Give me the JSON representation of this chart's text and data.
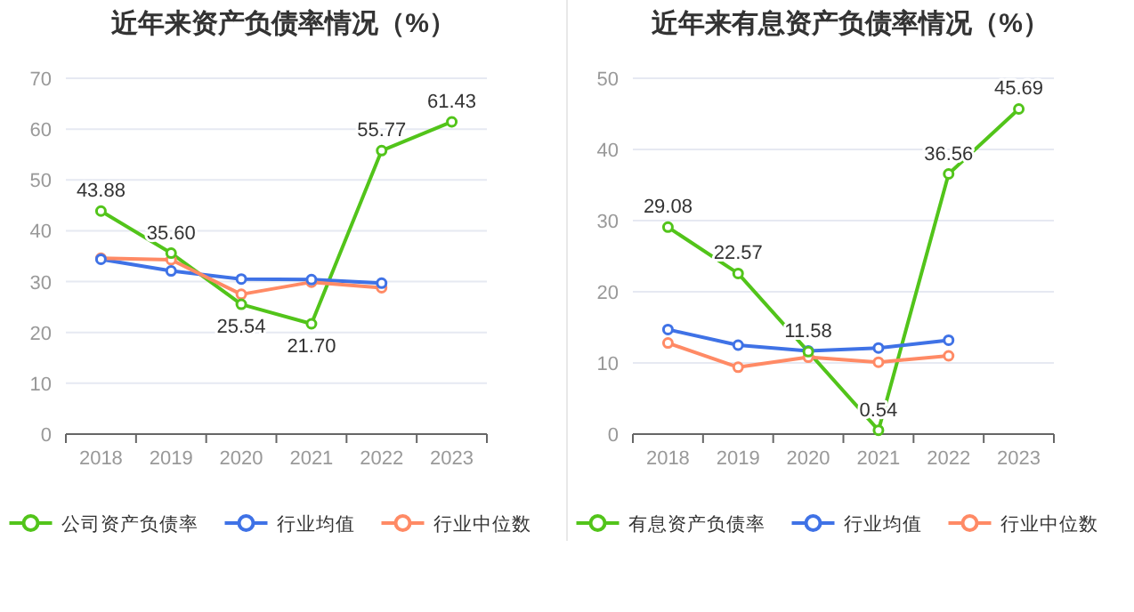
{
  "chart_data": [
    {
      "type": "line",
      "title": "近年来资产负债率情况（%）",
      "categories": [
        "2018",
        "2019",
        "2020",
        "2021",
        "2022",
        "2023"
      ],
      "ylim": [
        0,
        70
      ],
      "yticks": [
        0,
        10,
        20,
        30,
        40,
        50,
        60,
        70
      ],
      "grid": "y",
      "legend": "bottom",
      "marker": "circle",
      "line_style": "solid",
      "series": [
        {
          "name": "公司资产负债率",
          "color": "#52c41a",
          "values": [
            43.88,
            35.6,
            25.54,
            21.7,
            55.77,
            61.43
          ],
          "value_labels": [
            "43.88",
            "35.60",
            "25.54",
            "21.70",
            "55.77",
            "61.43"
          ]
        },
        {
          "name": "行业均值",
          "color": "#3f72e6",
          "values": [
            34.4,
            32.1,
            30.5,
            30.4,
            29.7,
            null
          ]
        },
        {
          "name": "行业中位数",
          "color": "#ff8a65",
          "values": [
            34.6,
            34.3,
            27.5,
            29.9,
            28.8,
            null
          ]
        }
      ]
    },
    {
      "type": "line",
      "title": "近年来有息资产负债率情况（%）",
      "categories": [
        "2018",
        "2019",
        "2020",
        "2021",
        "2022",
        "2023"
      ],
      "ylim": [
        0,
        50
      ],
      "yticks": [
        0,
        10,
        20,
        30,
        40,
        50
      ],
      "grid": "y",
      "legend": "bottom",
      "marker": "circle",
      "line_style": "solid",
      "series": [
        {
          "name": "有息资产负债率",
          "color": "#52c41a",
          "values": [
            29.08,
            22.57,
            11.58,
            0.54,
            36.56,
            45.69
          ],
          "value_labels": [
            "29.08",
            "22.57",
            "11.58",
            "0.54",
            "36.56",
            "45.69"
          ]
        },
        {
          "name": "行业均值",
          "color": "#3f72e6",
          "values": [
            14.7,
            12.5,
            11.7,
            12.1,
            13.2,
            null
          ]
        },
        {
          "name": "行业中位数",
          "color": "#ff8a65",
          "values": [
            12.8,
            9.4,
            10.8,
            10.1,
            11.0,
            null
          ]
        }
      ]
    }
  ]
}
